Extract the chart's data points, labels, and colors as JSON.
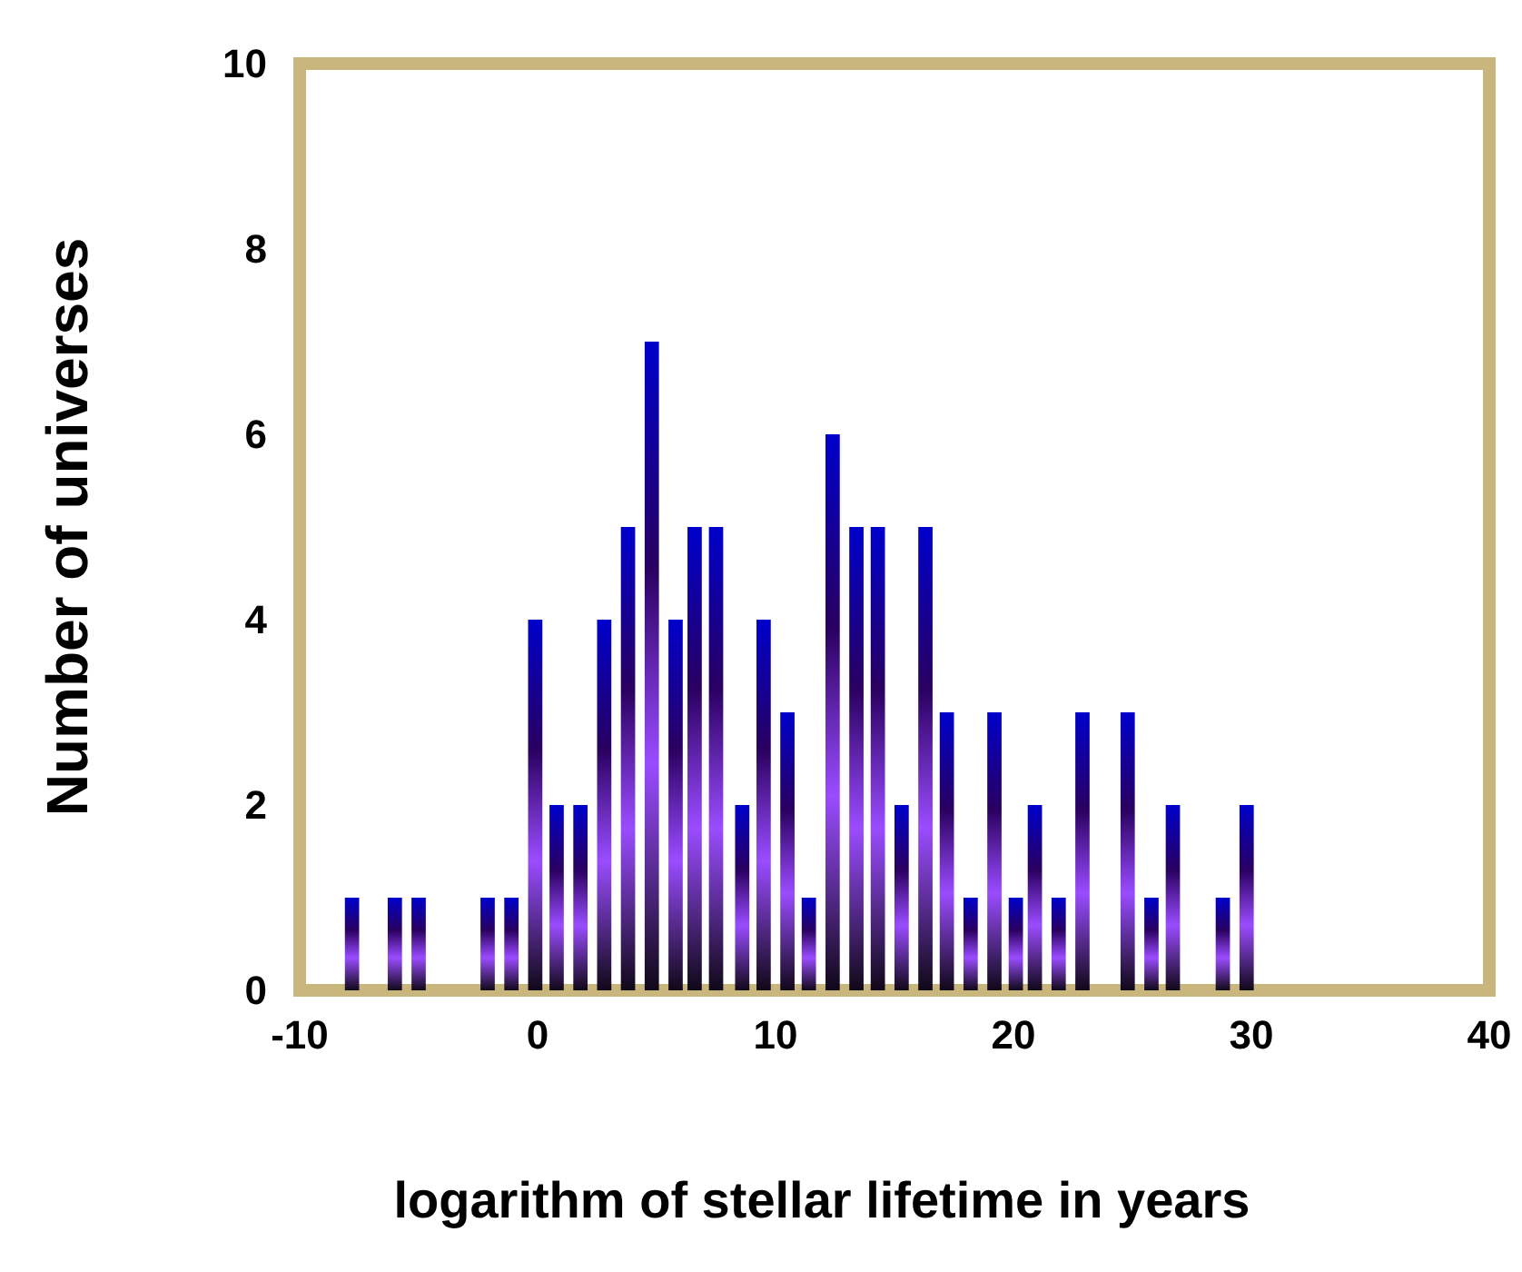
{
  "chart_data": {
    "type": "bar",
    "xlabel": "logarithm of stellar lifetime in years",
    "ylabel": "Number of universes",
    "x": [
      -7.8,
      -6.0,
      -5.0,
      -2.1,
      -1.1,
      -0.1,
      0.8,
      1.8,
      2.8,
      3.8,
      4.8,
      5.8,
      6.6,
      7.5,
      8.6,
      9.5,
      10.5,
      11.4,
      12.4,
      13.4,
      14.3,
      15.3,
      16.3,
      17.2,
      18.2,
      19.2,
      20.1,
      20.9,
      21.9,
      22.9,
      24.8,
      25.8,
      26.7,
      28.8,
      29.8
    ],
    "values": [
      1,
      1,
      1,
      1,
      1,
      4,
      2,
      2,
      4,
      5,
      7,
      4,
      5,
      5,
      2,
      4,
      3,
      1,
      6,
      5,
      5,
      2,
      5,
      3,
      1,
      3,
      1,
      2,
      1,
      3,
      3,
      1,
      2,
      1,
      2
    ],
    "color": "#0000cc",
    "xlim": [
      -10,
      40
    ],
    "xticks": [
      -10,
      0,
      10,
      20,
      30,
      40
    ],
    "ylim": [
      0,
      10
    ],
    "yticks": [
      0,
      2,
      4,
      6,
      8,
      10
    ],
    "grid": false
  }
}
